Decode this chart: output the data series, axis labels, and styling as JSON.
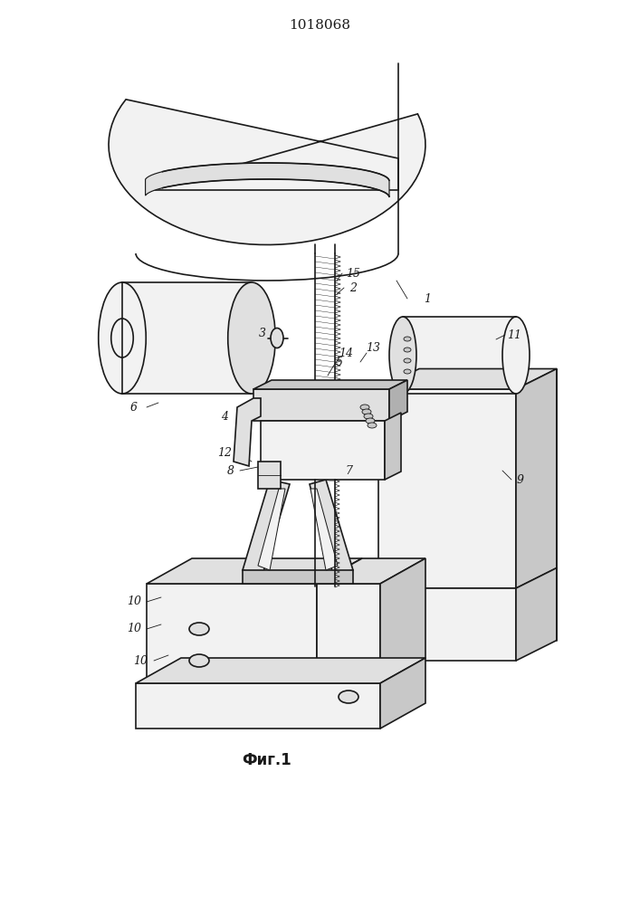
{
  "title": "1018068",
  "fig_label": "Фиг.1",
  "title_fontsize": 11,
  "fig_label_fontsize": 12,
  "bg_color": "#ffffff",
  "line_color": "#1a1a1a",
  "lw": 1.2,
  "lw_thin": 0.6,
  "lw_thick": 1.8,
  "gray_light": "#f2f2f2",
  "gray_mid": "#e0e0e0",
  "gray_dark": "#c8c8c8",
  "gray_darker": "#b0b0b0"
}
